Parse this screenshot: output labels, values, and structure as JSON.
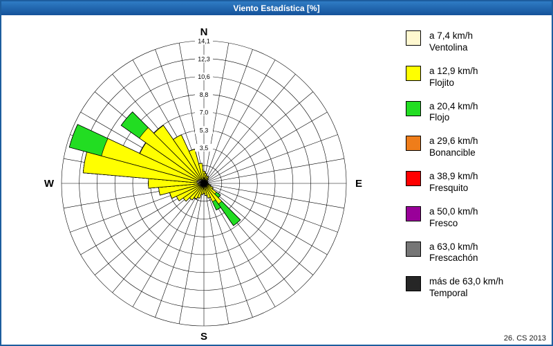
{
  "window": {
    "title": "Viento Estadística [%]",
    "footer_note": "26. CS 2013"
  },
  "legend": {
    "position": "right",
    "items": [
      {
        "speed": "a 7,4 km/h",
        "name": "Ventolina",
        "color": "#FFF8D0"
      },
      {
        "speed": "a 12,9 km/h",
        "name": "Flojito",
        "color": "#FFFF00"
      },
      {
        "speed": "a 20,4 km/h",
        "name": "Flojo",
        "color": "#22DD22"
      },
      {
        "speed": "a 29,6 km/h",
        "name": "Bonancible",
        "color": "#EF7D1A"
      },
      {
        "speed": "a 38,9 km/h",
        "name": "Fresquito",
        "color": "#FF0000"
      },
      {
        "speed": "a 50,0 km/h",
        "name": "Fresco",
        "color": "#990099"
      },
      {
        "speed": "a 63,0 km/h",
        "name": "Frescachón",
        "color": "#767676"
      },
      {
        "speed": "más de 63,0 km/h",
        "name": "Temporal",
        "color": "#262626"
      }
    ]
  },
  "chart_data": {
    "type": "windrose",
    "title": "Viento Estadística [%]",
    "units": "%",
    "legend_position": "right",
    "compass_labels": [
      "N",
      "E",
      "S",
      "W"
    ],
    "num_rings": 8,
    "max_value": 14.1,
    "ring_values": [
      3.5,
      5.3,
      7.0,
      8.8,
      10.6,
      12.3,
      14.1
    ],
    "ring_labels": [
      "3,5",
      "5,3",
      "7,0",
      "8,8",
      "10,6",
      "12,3",
      "14,1"
    ],
    "sector_width_deg": 10,
    "directions_deg": [
      0,
      10,
      20,
      30,
      40,
      50,
      60,
      70,
      80,
      90,
      100,
      110,
      120,
      130,
      140,
      150,
      160,
      170,
      180,
      190,
      200,
      210,
      220,
      230,
      240,
      250,
      260,
      270,
      280,
      290,
      300,
      310,
      320,
      330,
      340,
      350
    ],
    "series": [
      {
        "name": "Ventolina",
        "color": "#FFF8D0",
        "values": [
          0.3,
          0.3,
          0.2,
          0.2,
          0.2,
          0.1,
          0.1,
          0.1,
          0.1,
          0.1,
          0.1,
          0.2,
          0.2,
          0.3,
          0.4,
          0.3,
          0.3,
          0.2,
          0.2,
          0.2,
          0.3,
          0.3,
          0.3,
          0.4,
          0.4,
          0.5,
          0.5,
          0.6,
          0.7,
          0.7,
          0.6,
          0.6,
          0.5,
          0.4,
          0.4,
          0.3
        ]
      },
      {
        "name": "Flojito",
        "color": "#FFFF00",
        "values": [
          0.9,
          0.7,
          0.6,
          0.6,
          0.4,
          0.3,
          0.3,
          0.2,
          0.3,
          0.3,
          0.4,
          0.5,
          0.8,
          1.2,
          2.1,
          1.7,
          1.2,
          1.0,
          0.8,
          0.9,
          1.2,
          1.4,
          1.7,
          2.1,
          2.6,
          3.0,
          4.0,
          4.9,
          11.3,
          9.8,
          6.4,
          7.2,
          6.5,
          4.9,
          3.1,
          1.7
        ]
      },
      {
        "name": "Flojo",
        "color": "#22DD22",
        "values": [
          0,
          0,
          0,
          0,
          0,
          0,
          0,
          0,
          0,
          0,
          0,
          0,
          0,
          0.5,
          2.6,
          0.9,
          0,
          0,
          0,
          0,
          0,
          0,
          0,
          0,
          0,
          0,
          0,
          0,
          0,
          3.3,
          0,
          2.2,
          0,
          0,
          0,
          0
        ]
      },
      {
        "name": "Bonancible",
        "color": "#EF7D1A",
        "values": 0
      },
      {
        "name": "Fresquito",
        "color": "#FF0000",
        "values": 0
      },
      {
        "name": "Fresco",
        "color": "#990099",
        "values": 0
      },
      {
        "name": "Frescachón",
        "color": "#767676",
        "values": 0
      },
      {
        "name": "Temporal",
        "color": "#262626",
        "values": 0
      }
    ]
  }
}
